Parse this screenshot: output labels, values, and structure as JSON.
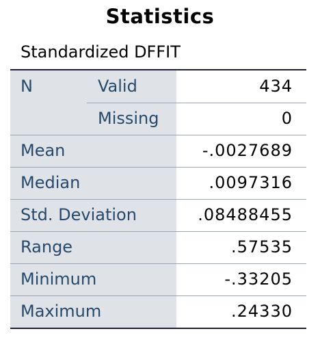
{
  "title": "Statistics",
  "caption": "Standardized DFFIT",
  "group": {
    "label": "N",
    "rows": [
      {
        "sublabel": "Valid",
        "value": "434"
      },
      {
        "sublabel": "Missing",
        "value": "0"
      }
    ]
  },
  "rows": [
    {
      "label": "Mean",
      "value": "-.0027689"
    },
    {
      "label": "Median",
      "value": ".0097316"
    },
    {
      "label": "Std. Deviation",
      "value": ".08488455"
    },
    {
      "label": "Range",
      "value": ".57535"
    },
    {
      "label": "Minimum",
      "value": "-.33205"
    },
    {
      "label": "Maximum",
      "value": ".24330"
    }
  ]
}
